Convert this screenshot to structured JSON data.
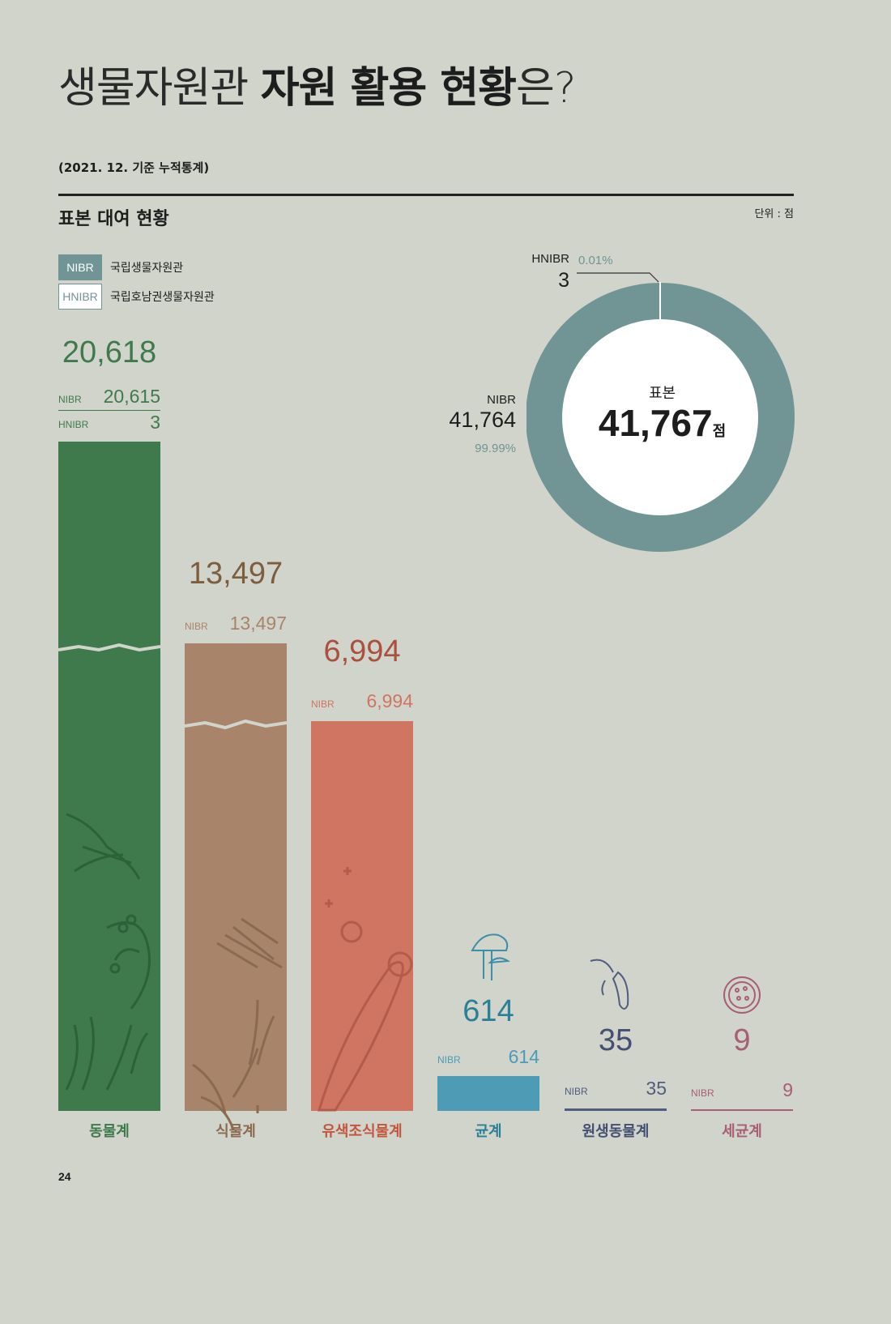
{
  "title": {
    "light_1": "생물자원관 ",
    "bold": "자원 활용 현황",
    "light_2": "은?"
  },
  "subtitle": "(2021. 12. 기준 누적통계)",
  "section_title": "표본 대여 현황",
  "unit": "단위 : 점",
  "page_number": "24",
  "legend": [
    {
      "code": "NIBR",
      "name": "국립생물자원관"
    },
    {
      "code": "HNIBR",
      "name": "국립호남권생물자원관"
    }
  ],
  "colors": {
    "nibr": "#719595",
    "animal": "#3f7a4d",
    "plant": "#a8846a",
    "algae": "#cf7561",
    "fungi": "#4d9bb4",
    "protist": "#505d7f",
    "bacteria": "#a65f73"
  },
  "chart_data": [
    {
      "type": "bar",
      "categories": [
        "동물계",
        "식물계",
        "유색조식물계",
        "균계",
        "원생동물계",
        "세균계"
      ],
      "totals": [
        "20,618",
        "13,497",
        "6,994",
        "614",
        "35",
        "9"
      ],
      "values": [
        20618,
        13497,
        6994,
        614,
        35,
        9
      ],
      "series": [
        {
          "name": "NIBR",
          "values": [
            20615,
            13497,
            6994,
            614,
            35,
            9
          ],
          "labels": [
            "20,615",
            "13,497",
            "6,994",
            "614",
            "35",
            "9"
          ]
        },
        {
          "name": "HNIBR",
          "values": [
            3,
            null,
            null,
            null,
            null,
            null
          ],
          "labels": [
            "3",
            "",
            "",
            "",
            "",
            ""
          ]
        }
      ],
      "axis_break": true
    },
    {
      "type": "pie",
      "style": "donut",
      "center_title": "표본",
      "center_value": "41,767",
      "center_unit": "점",
      "slices": [
        {
          "name": "NIBR",
          "value": 41764,
          "label": "41,764",
          "percent": "99.99%"
        },
        {
          "name": "HNIBR",
          "value": 3,
          "label": "3",
          "percent": "0.01%"
        }
      ]
    }
  ]
}
